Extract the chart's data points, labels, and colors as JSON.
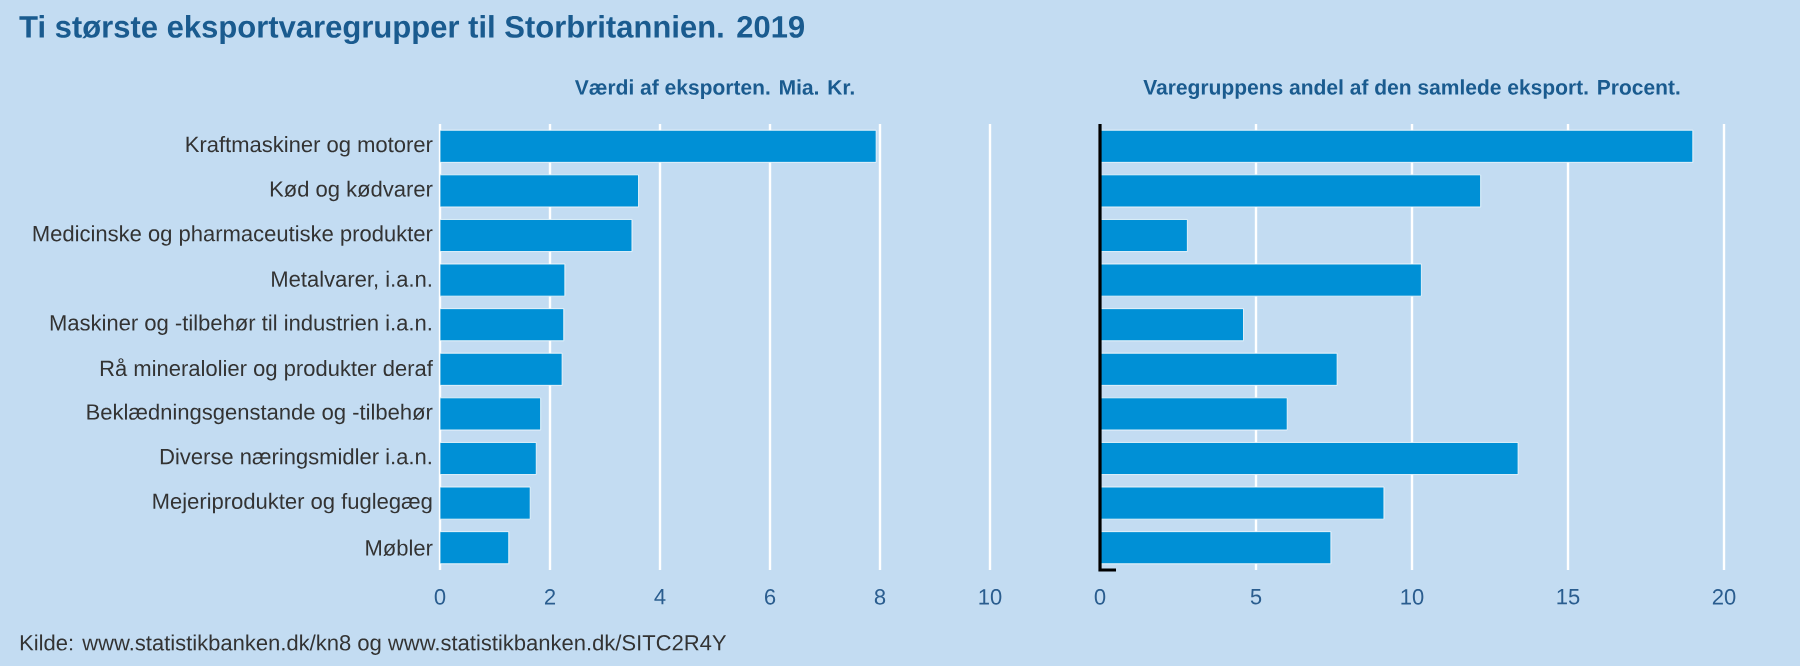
{
  "chart_data": [
    {
      "type": "bar",
      "orientation": "horizontal",
      "title": "Ti største eksportvaregrupper til Storbritannien. 2019",
      "subtitle": "Værdi af eksporten. Mia. Kr.",
      "categories": [
        "Kraftmaskiner og motorer",
        "Kød og kødvarer",
        "Medicinske og pharmaceutiske produkter",
        "Metalvarer, i.a.n.",
        "Maskiner og -tilbehør til industrien i.a.n.",
        "Rå mineralolier og produkter deraf",
        "Beklædningsgenstande og -tilbehør",
        "Diverse næringsmidler i.a.n.",
        "Mejeriprodukter og fuglegæg",
        "Møbler"
      ],
      "values": [
        7.93,
        3.61,
        3.49,
        2.27,
        2.25,
        2.22,
        1.83,
        1.75,
        1.64,
        1.25
      ],
      "color": "#0090d6",
      "xlim": [
        0,
        10
      ],
      "xticks": [
        0,
        2,
        4,
        6,
        8,
        10
      ],
      "grid": "x",
      "annotations": [
        "Kilde: www.statistikbanken.dk/kn8 og www.statistikbanken.dk/SITC2R4Y"
      ]
    },
    {
      "type": "bar",
      "orientation": "horizontal",
      "subtitle": "Varegruppens andel af den samlede eksport. Procent.",
      "categories": [
        null,
        null,
        null,
        null,
        null,
        null,
        null,
        null,
        null,
        null
      ],
      "values": [
        19.0,
        12.2,
        2.8,
        10.3,
        4.6,
        7.6,
        6.0,
        13.4,
        9.1,
        7.4
      ],
      "color": "#0090d6",
      "xlim": [
        0,
        20
      ],
      "xticks": [
        0,
        5,
        10,
        15,
        20
      ],
      "grid": "x",
      "tick_labels": "x"
    }
  ]
}
